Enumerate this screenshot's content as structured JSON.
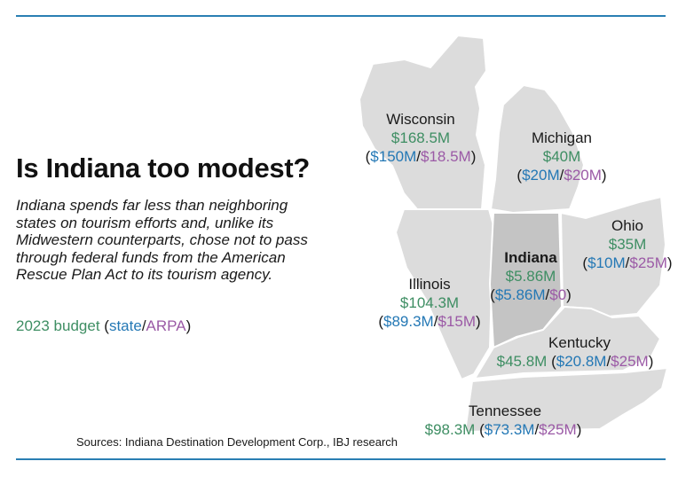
{
  "headline": "Is Indiana too modest?",
  "dek": "Indiana spends far less than neighboring states on tourism efforts and, unlike its Midwestern counterparts, chose not to pass through federal funds from the American Rescue Plan Act to its tourism agency.",
  "legend": {
    "prefix": "2023 budget",
    "open": "(",
    "state": "state",
    "slash": "/",
    "arpa": "ARPA",
    "close": ")"
  },
  "colors": {
    "total": "#3e8e63",
    "state": "#2478b5",
    "arpa": "#9b5aa6",
    "rule": "#2a7fb3",
    "land": "#dcdcdc",
    "indiana": "#c4c4c4"
  },
  "states": {
    "wisconsin": {
      "name": "Wisconsin",
      "total": "$168.5M",
      "state": "$150M",
      "arpa": "$18.5M"
    },
    "michigan": {
      "name": "Michigan",
      "total": "$40M",
      "state": "$20M",
      "arpa": "$20M"
    },
    "ohio": {
      "name": "Ohio",
      "total": "$35M",
      "state": "$10M",
      "arpa": "$25M"
    },
    "indiana": {
      "name": "Indiana",
      "total": "$5.86M",
      "state": "$5.86M",
      "arpa": "$0"
    },
    "illinois": {
      "name": "Illinois",
      "total": "$104.3M",
      "state": "$89.3M",
      "arpa": "$15M"
    },
    "kentucky": {
      "name": "Kentucky",
      "total": "$45.8M",
      "state": "$20.8M",
      "arpa": "$25M"
    },
    "tennessee": {
      "name": "Tennessee",
      "total": "$98.3M",
      "state": "$73.3M",
      "arpa": "$25M"
    }
  },
  "source": "Sources: Indiana Destination Development Corp., IBJ research"
}
